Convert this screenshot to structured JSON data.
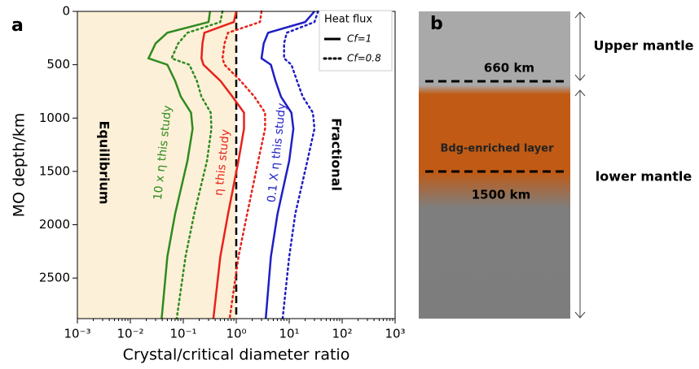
{
  "chart_data": {
    "type": "line",
    "panel_label": "a",
    "xlabel": "Crystal/critical diameter ratio",
    "ylabel": "MO depth/km",
    "xscale": "log",
    "yinvert": true,
    "xlim": [
      0.001,
      1000
    ],
    "ylim": [
      0,
      2880
    ],
    "xticks": [
      {
        "value": 0.001,
        "label": "10⁻³"
      },
      {
        "value": 0.01,
        "label": "10⁻²"
      },
      {
        "value": 0.1,
        "label": "10⁻¹"
      },
      {
        "value": 1,
        "label": "10⁰"
      },
      {
        "value": 10,
        "label": "10¹"
      },
      {
        "value": 100,
        "label": "10²"
      },
      {
        "value": 1000,
        "label": "10³"
      }
    ],
    "yticks": [
      0,
      500,
      1000,
      1500,
      2000,
      2500
    ],
    "reference_x": 1,
    "shade_xlim": [
      0.001,
      1
    ],
    "shade_color": "#fdf0d8",
    "y": [
      0,
      100,
      200,
      300,
      440,
      500,
      650,
      800,
      950,
      1100,
      1400,
      1900,
      2300,
      2880
    ],
    "series": [
      {
        "color": "#2e8b1f",
        "dash": "solid",
        "values": [
          0.32,
          0.3,
          0.05,
          0.03,
          0.022,
          0.05,
          0.07,
          0.09,
          0.14,
          0.15,
          0.12,
          0.07,
          0.05,
          0.039
        ]
      },
      {
        "color": "#2e8b1f",
        "dash": "dotted",
        "values": [
          0.55,
          0.5,
          0.12,
          0.08,
          0.06,
          0.13,
          0.18,
          0.22,
          0.33,
          0.34,
          0.28,
          0.16,
          0.11,
          0.075
        ]
      },
      {
        "color": "#e8221b",
        "dash": "solid",
        "values": [
          1.0,
          0.9,
          0.25,
          0.23,
          0.22,
          0.24,
          0.5,
          0.85,
          1.4,
          1.4,
          1.1,
          0.7,
          0.5,
          0.37
        ]
      },
      {
        "color": "#e8221b",
        "dash": "dotted",
        "values": [
          3,
          2.8,
          0.7,
          0.6,
          0.55,
          0.6,
          1.2,
          2.2,
          3.5,
          3.5,
          2.6,
          1.6,
          1.1,
          0.75
        ]
      },
      {
        "color": "#1f1fc4",
        "dash": "solid",
        "values": [
          30,
          20,
          4,
          3.3,
          3,
          4.5,
          5.5,
          7,
          11,
          12,
          10,
          6,
          4.5,
          3.6
        ]
      },
      {
        "color": "#1f1fc4",
        "dash": "dotted",
        "values": [
          35,
          30,
          9,
          8,
          8,
          11,
          14,
          18,
          28,
          30,
          22,
          13,
          10,
          7.5
        ]
      }
    ],
    "legend": {
      "title": "Heat flux",
      "entries": [
        {
          "label": "Cf=1",
          "dash": "solid"
        },
        {
          "label": "Cf=0.8",
          "dash": "dotted"
        }
      ]
    },
    "annotations": [
      {
        "text": "Equilibrium",
        "color": "#000000"
      },
      {
        "text": "Fractional",
        "color": "#000000"
      },
      {
        "text": "10 x η this study",
        "color": "#2e8b1f"
      },
      {
        "text": "η this study",
        "color": "#e8221b"
      },
      {
        "text": "0.1 X η this study",
        "color": "#1f1fc4"
      }
    ]
  },
  "diagram": {
    "label": "b",
    "upper_depth": "660 km",
    "lower_depth": "1500 km",
    "layer": "Bdg-enriched layer",
    "upper_region": "Upper mantle",
    "lower_region": "lower mantle"
  }
}
